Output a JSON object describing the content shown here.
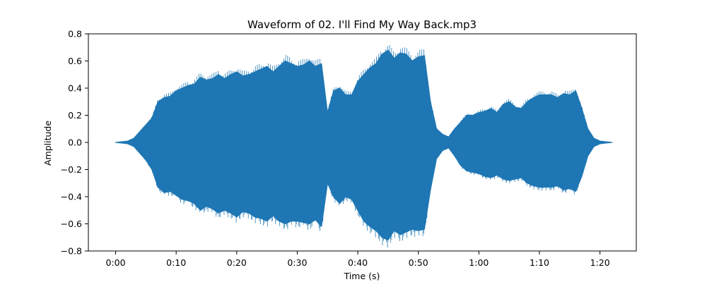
{
  "chart_data": {
    "type": "area",
    "title": "Waveform of 02. I'll Find My Way Back.mp3",
    "xlabel": "Time (s)",
    "ylabel": "Amplitude",
    "xlim": [
      -4.5,
      86
    ],
    "ylim": [
      -0.8,
      0.8
    ],
    "x_ticks": [
      {
        "value": 0,
        "label": "0:00"
      },
      {
        "value": 10,
        "label": "0:10"
      },
      {
        "value": 20,
        "label": "0:20"
      },
      {
        "value": 30,
        "label": "0:30"
      },
      {
        "value": 40,
        "label": "0:40"
      },
      {
        "value": 50,
        "label": "0:50"
      },
      {
        "value": 60,
        "label": "1:00"
      },
      {
        "value": 70,
        "label": "1:10"
      },
      {
        "value": 80,
        "label": "1:20"
      }
    ],
    "y_ticks": [
      {
        "value": 0.8,
        "label": "0.8"
      },
      {
        "value": 0.6,
        "label": "0.6"
      },
      {
        "value": 0.4,
        "label": "0.4"
      },
      {
        "value": 0.2,
        "label": "0.2"
      },
      {
        "value": 0.0,
        "label": "0.0"
      },
      {
        "value": -0.2,
        "label": "−0.2"
      },
      {
        "value": -0.4,
        "label": "−0.4"
      },
      {
        "value": -0.6,
        "label": "−0.6"
      },
      {
        "value": -0.8,
        "label": "−0.8"
      }
    ],
    "grid": false,
    "color": "#1f77b4",
    "series": [
      {
        "x": [
          0,
          1,
          2,
          3,
          4,
          5,
          6,
          7,
          8,
          9,
          10,
          11,
          12,
          13,
          14,
          15,
          16,
          17,
          18,
          19,
          20,
          21,
          22,
          23,
          24,
          25,
          26,
          27,
          28,
          29,
          30,
          31,
          32,
          33,
          34,
          35,
          36,
          37,
          38,
          39,
          40,
          41,
          42,
          43,
          44,
          45,
          46,
          47,
          48,
          49,
          50,
          51,
          52,
          53,
          54,
          55,
          56,
          57,
          58,
          59,
          60,
          61,
          62,
          63,
          64,
          65,
          66,
          67,
          68,
          69,
          70,
          71,
          72,
          73,
          74,
          75,
          76,
          77,
          78,
          79,
          80,
          81,
          82
        ],
        "upper": [
          0.0,
          0.005,
          0.01,
          0.03,
          0.08,
          0.13,
          0.18,
          0.3,
          0.33,
          0.34,
          0.38,
          0.4,
          0.42,
          0.43,
          0.48,
          0.46,
          0.47,
          0.5,
          0.47,
          0.5,
          0.52,
          0.49,
          0.5,
          0.52,
          0.54,
          0.56,
          0.52,
          0.56,
          0.6,
          0.58,
          0.56,
          0.57,
          0.6,
          0.56,
          0.58,
          0.22,
          0.38,
          0.4,
          0.35,
          0.35,
          0.45,
          0.5,
          0.55,
          0.58,
          0.65,
          0.68,
          0.62,
          0.66,
          0.65,
          0.6,
          0.63,
          0.64,
          0.3,
          0.1,
          0.06,
          0.04,
          0.1,
          0.15,
          0.2,
          0.2,
          0.22,
          0.23,
          0.25,
          0.22,
          0.28,
          0.3,
          0.26,
          0.25,
          0.3,
          0.33,
          0.35,
          0.35,
          0.35,
          0.33,
          0.36,
          0.35,
          0.38,
          0.25,
          0.1,
          0.03,
          0.01,
          0.005,
          0.0
        ],
        "lower": [
          0.0,
          -0.005,
          -0.01,
          -0.03,
          -0.08,
          -0.13,
          -0.2,
          -0.33,
          -0.37,
          -0.36,
          -0.39,
          -0.42,
          -0.43,
          -0.45,
          -0.5,
          -0.47,
          -0.49,
          -0.52,
          -0.5,
          -0.52,
          -0.55,
          -0.51,
          -0.52,
          -0.55,
          -0.56,
          -0.58,
          -0.54,
          -0.58,
          -0.6,
          -0.58,
          -0.58,
          -0.59,
          -0.6,
          -0.57,
          -0.62,
          -0.3,
          -0.4,
          -0.45,
          -0.4,
          -0.42,
          -0.5,
          -0.58,
          -0.62,
          -0.65,
          -0.7,
          -0.72,
          -0.65,
          -0.68,
          -0.66,
          -0.64,
          -0.65,
          -0.64,
          -0.35,
          -0.12,
          -0.06,
          -0.04,
          -0.1,
          -0.17,
          -0.21,
          -0.22,
          -0.23,
          -0.25,
          -0.26,
          -0.24,
          -0.27,
          -0.28,
          -0.27,
          -0.26,
          -0.3,
          -0.32,
          -0.33,
          -0.33,
          -0.33,
          -0.32,
          -0.35,
          -0.34,
          -0.36,
          -0.25,
          -0.1,
          -0.03,
          -0.01,
          -0.005,
          0.0
        ]
      }
    ]
  }
}
